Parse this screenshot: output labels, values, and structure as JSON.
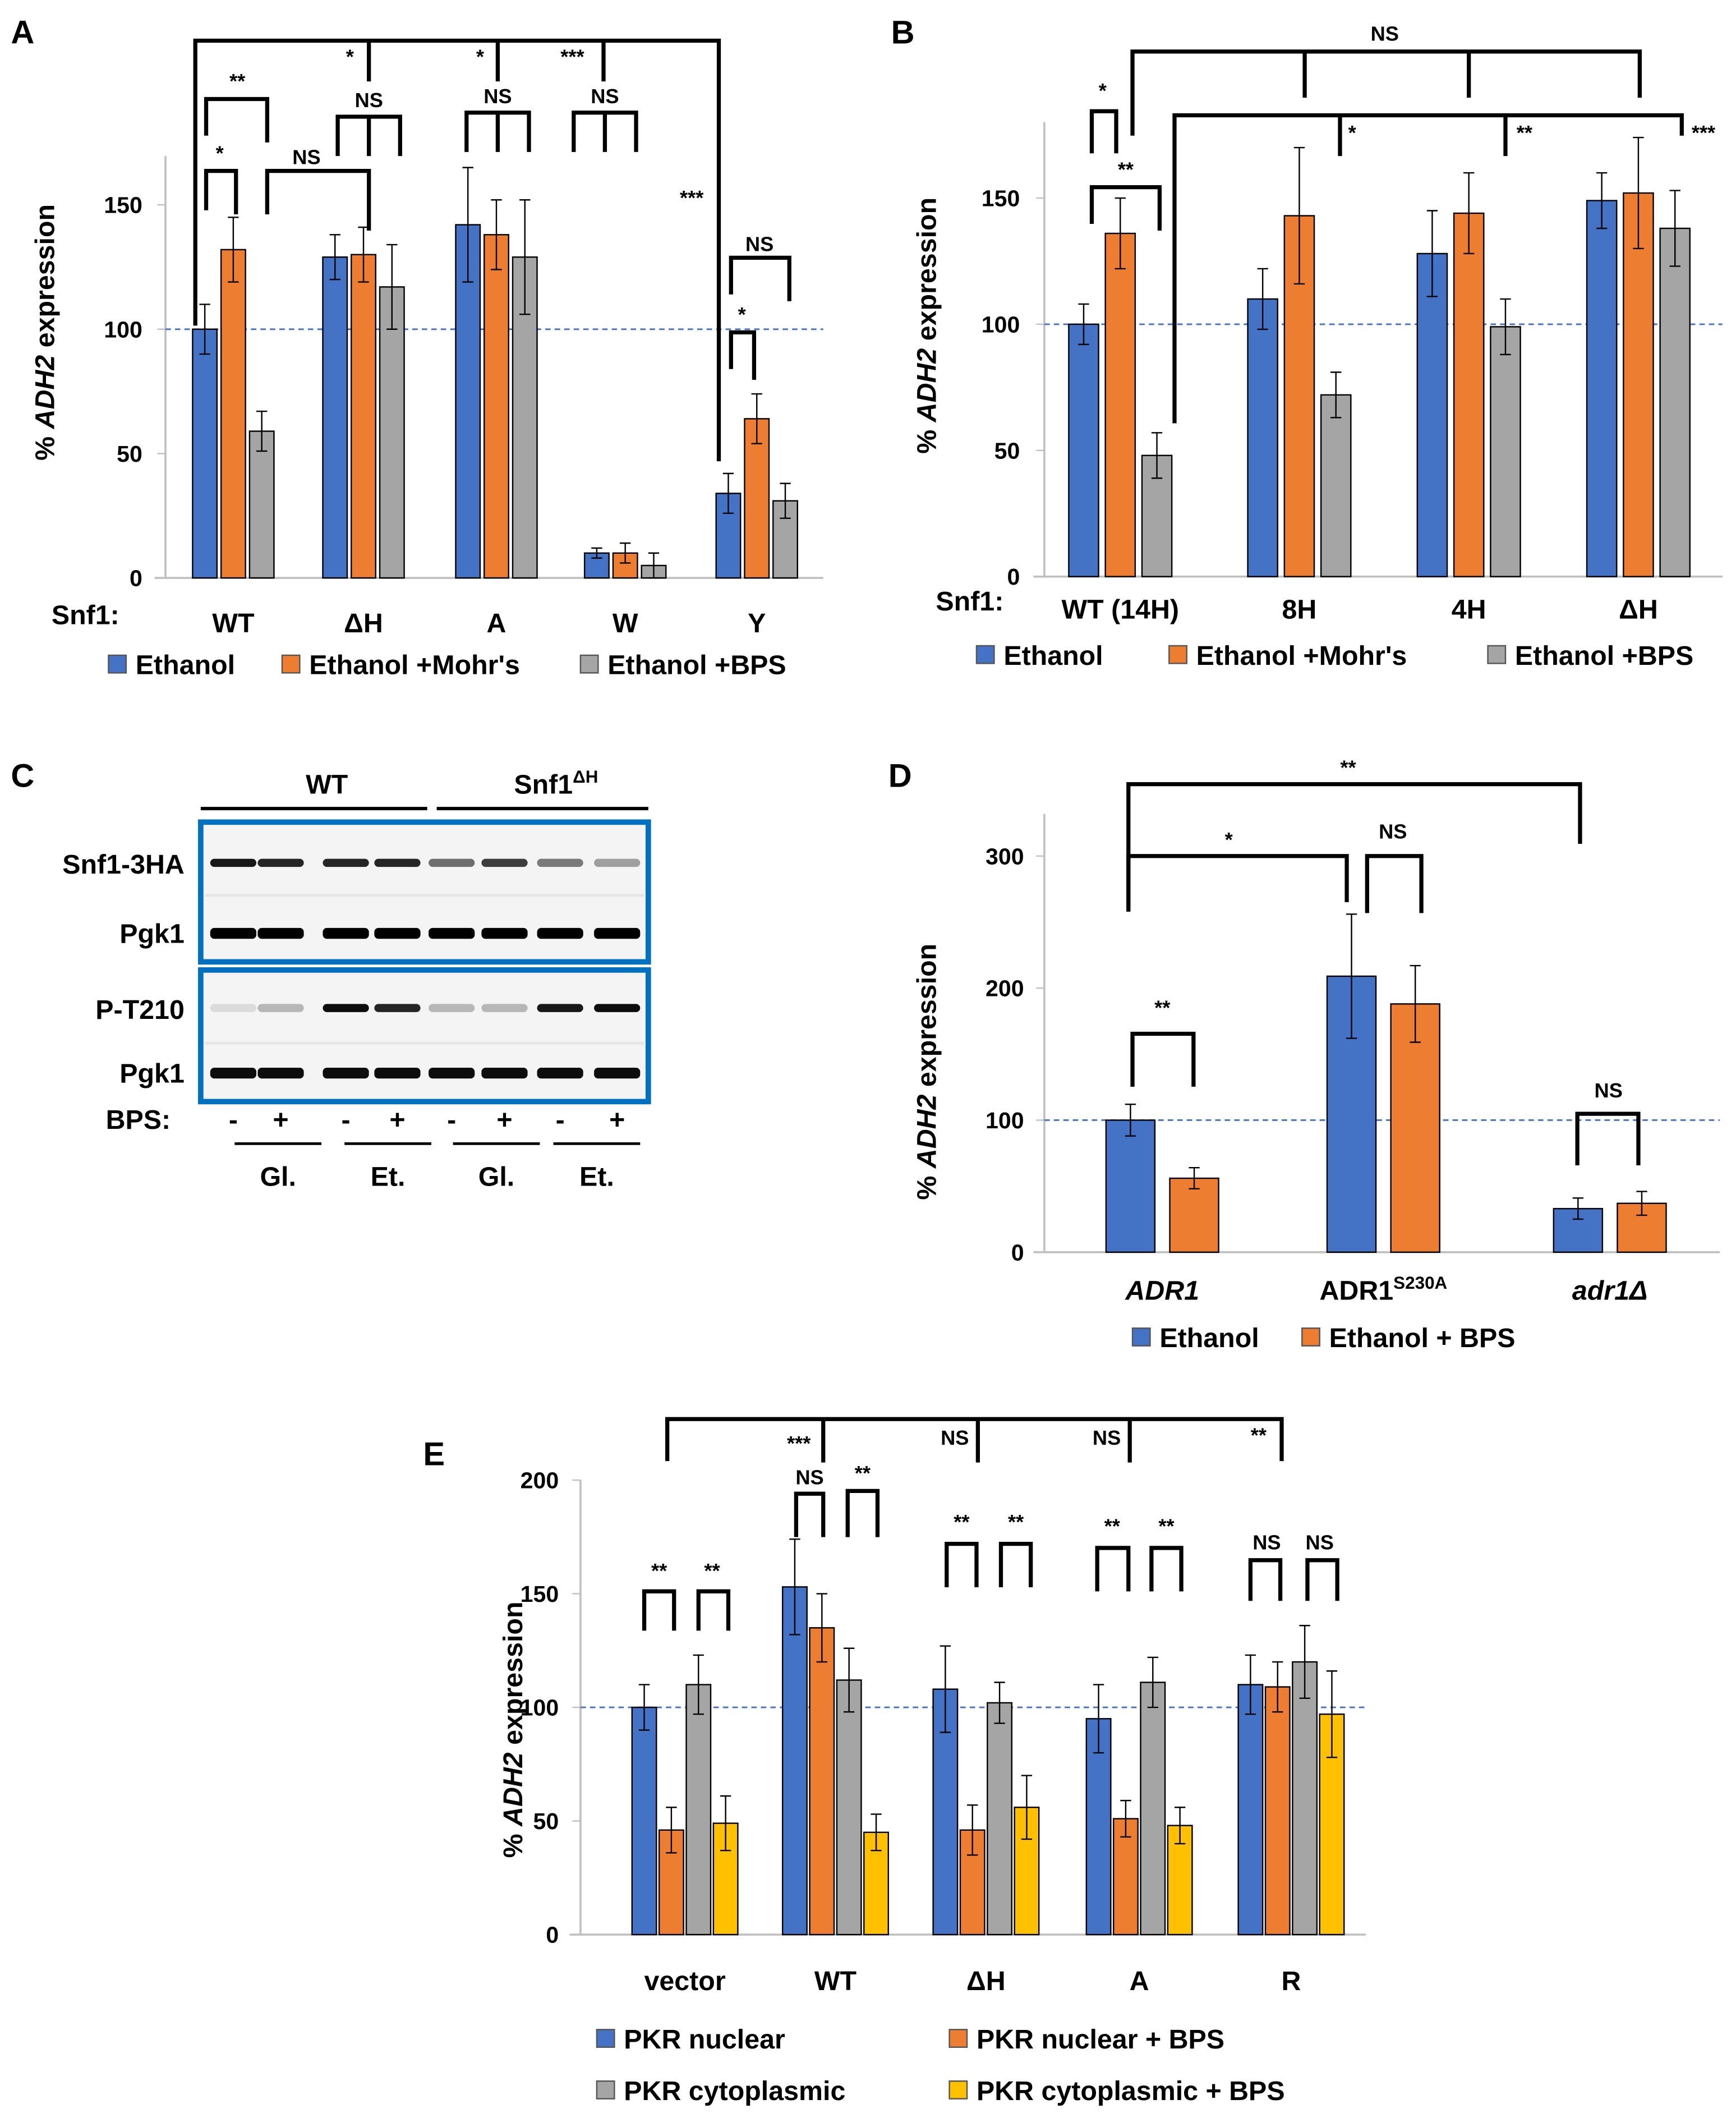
{
  "colors": {
    "blue": "#4472C4",
    "orange": "#ED7D31",
    "gray": "#A5A5A5",
    "yellow": "#FFC000",
    "ref_line": "#4472C4"
  },
  "chart_data": [
    {
      "panel": "A",
      "type": "bar",
      "ylabel_prefix": "% ",
      "ylabel_gene": "ADH2",
      "ylabel_suffix": " expression",
      "xprefix": "Snf1:",
      "categories": [
        "WT",
        "ΔH",
        "A",
        "W",
        "Y"
      ],
      "yticks": [
        0,
        50,
        100,
        150
      ],
      "ylim": [
        0,
        170
      ],
      "reference_line": 100,
      "series": [
        {
          "name": "Ethanol",
          "color": "#4472C4",
          "values": [
            100,
            129,
            142,
            10,
            34
          ],
          "errors": [
            10,
            9,
            23,
            2,
            8
          ]
        },
        {
          "name": "Ethanol +Mohr's",
          "color": "#ED7D31",
          "values": [
            132,
            130,
            138,
            10,
            64
          ],
          "errors": [
            13,
            11,
            14,
            4,
            10
          ]
        },
        {
          "name": "Ethanol +BPS",
          "color": "#A5A5A5",
          "values": [
            59,
            117,
            129,
            5,
            31
          ],
          "errors": [
            8,
            17,
            23,
            5,
            7
          ]
        }
      ],
      "significance": [
        "*",
        "*",
        "***",
        "***",
        "**",
        "*",
        "NS",
        "NS",
        "NS",
        "NS",
        "*",
        "NS"
      ]
    },
    {
      "panel": "B",
      "type": "bar",
      "ylabel_prefix": "% ",
      "ylabel_gene": "ADH2",
      "ylabel_suffix": " expression",
      "xprefix": "Snf1:",
      "categories": [
        "WT (14H)",
        "8H",
        "4H",
        "ΔH"
      ],
      "yticks": [
        0,
        50,
        100,
        150
      ],
      "ylim": [
        0,
        180
      ],
      "reference_line": 100,
      "series": [
        {
          "name": "Ethanol",
          "color": "#4472C4",
          "values": [
            100,
            110,
            128,
            149
          ],
          "errors": [
            8,
            12,
            17,
            11
          ]
        },
        {
          "name": "Ethanol +Mohr's",
          "color": "#ED7D31",
          "values": [
            136,
            143,
            144,
            152
          ],
          "errors": [
            14,
            27,
            16,
            22
          ]
        },
        {
          "name": "Ethanol +BPS",
          "color": "#A5A5A5",
          "values": [
            48,
            72,
            99,
            138
          ],
          "errors": [
            9,
            9,
            11,
            15
          ]
        }
      ],
      "significance": [
        "NS",
        "*",
        "**",
        "***",
        "*",
        "**"
      ]
    },
    {
      "panel": "D",
      "type": "bar",
      "ylabel_prefix": "% ",
      "ylabel_gene": "ADH2",
      "ylabel_suffix": " expression",
      "categories": [
        "ADR1",
        "ADR1",
        "adr1Δ"
      ],
      "category_superscripts": [
        "",
        "S230A",
        ""
      ],
      "category_italic": [
        true,
        false,
        true
      ],
      "yticks": [
        0,
        100,
        200,
        300
      ],
      "ylim": [
        0,
        300
      ],
      "reference_line": 100,
      "series": [
        {
          "name": "Ethanol",
          "color": "#4472C4",
          "values": [
            100,
            209,
            33
          ],
          "errors": [
            12,
            47,
            8
          ]
        },
        {
          "name": "Ethanol + BPS",
          "color": "#ED7D31",
          "values": [
            56,
            188,
            37
          ],
          "errors": [
            8,
            29,
            9
          ]
        }
      ],
      "significance": [
        "**",
        "*",
        "NS",
        "**",
        "NS"
      ]
    },
    {
      "panel": "E",
      "type": "bar",
      "ylabel_prefix": "% ",
      "ylabel_gene": "ADH2",
      "ylabel_suffix": " expression",
      "categories": [
        "vector",
        "WT",
        "ΔH",
        "A",
        "R"
      ],
      "yticks": [
        0,
        50,
        100,
        150,
        200
      ],
      "ylim": [
        0,
        200
      ],
      "reference_line": 100,
      "series": [
        {
          "name": "PKR nuclear",
          "color": "#4472C4",
          "values": [
            100,
            153,
            108,
            95,
            110
          ],
          "errors": [
            10,
            21,
            19,
            15,
            13
          ]
        },
        {
          "name": "PKR nuclear + BPS",
          "color": "#ED7D31",
          "values": [
            46,
            135,
            46,
            51,
            109
          ],
          "errors": [
            10,
            15,
            11,
            8,
            11
          ]
        },
        {
          "name": "PKR cytoplasmic",
          "color": "#A5A5A5",
          "values": [
            110,
            112,
            102,
            111,
            120
          ],
          "errors": [
            13,
            14,
            9,
            11,
            16
          ]
        },
        {
          "name": "PKR cytoplasmic + BPS",
          "color": "#FFC000",
          "values": [
            49,
            45,
            56,
            48,
            97
          ],
          "errors": [
            12,
            8,
            14,
            8,
            19
          ]
        }
      ],
      "significance": [
        "***",
        "NS",
        "NS",
        "**",
        "**",
        "**",
        "NS",
        "**",
        "**",
        "**",
        "**",
        "**",
        "NS",
        "NS"
      ]
    }
  ],
  "blot": {
    "panel": "C",
    "groups": [
      "WT",
      "Snf1"
    ],
    "group2_superscript": "ΔH",
    "rows": [
      "Snf1-3HA",
      "Pgk1",
      "P-T210",
      "Pgk1"
    ],
    "treatment_label": "BPS:",
    "bps": [
      "-",
      "+",
      "-",
      "+",
      "-",
      "+",
      "-",
      "+"
    ],
    "conditions": [
      "Gl.",
      "Et.",
      "Gl.",
      "Et."
    ],
    "band_intensity": {
      "Snf1-3HA": [
        0.9,
        0.85,
        0.85,
        0.85,
        0.55,
        0.75,
        0.5,
        0.35
      ],
      "Pgk1_top": [
        1,
        1,
        1,
        1,
        1,
        1,
        1,
        1
      ],
      "P-T210": [
        0.1,
        0.25,
        0.95,
        0.85,
        0.25,
        0.25,
        0.9,
        0.95
      ],
      "Pgk1_bottom": [
        0.95,
        0.95,
        0.95,
        0.95,
        0.95,
        0.95,
        0.95,
        0.95
      ]
    }
  }
}
